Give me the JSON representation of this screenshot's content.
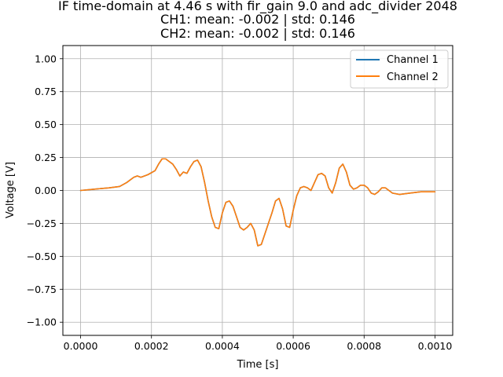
{
  "chart_data": {
    "type": "line",
    "title_lines": [
      "IF time-domain at 4.46 s with fir_gain 9.0 and adc_divider 2048",
      "CH1: mean: -0.002 | std: 0.146",
      "CH2: mean: -0.002 | std: 0.146"
    ],
    "xlabel": "Time [s]",
    "ylabel": "Voltage [V]",
    "xlim": [
      -5e-05,
      0.00105
    ],
    "ylim": [
      -1.1,
      1.1
    ],
    "xticks": [
      0,
      0.0002,
      0.0004,
      0.0006,
      0.0008,
      0.001
    ],
    "xtick_labels": [
      "0.0000",
      "0.0002",
      "0.0004",
      "0.0006",
      "0.0008",
      "0.0010"
    ],
    "yticks": [
      -1.0,
      -0.75,
      -0.5,
      -0.25,
      0.0,
      0.25,
      0.5,
      0.75,
      1.0
    ],
    "ytick_labels": [
      "−1.00",
      "−0.75",
      "−0.50",
      "−0.25",
      "0.00",
      "0.25",
      "0.50",
      "0.75",
      "1.00"
    ],
    "grid": true,
    "legend_position": "top-right",
    "series": [
      {
        "name": "Channel 1",
        "color": "#1f77b4",
        "x": [
          0,
          4e-05,
          8e-05,
          0.00011,
          0.00013,
          0.00015,
          0.00016,
          0.00017,
          0.00019,
          0.00021,
          0.00022,
          0.00023,
          0.00024,
          0.00025,
          0.00026,
          0.00027,
          0.00028,
          0.00029,
          0.0003,
          0.00031,
          0.00032,
          0.00033,
          0.00034,
          0.00035,
          0.00036,
          0.00037,
          0.00038,
          0.00039,
          0.0004,
          0.00041,
          0.00042,
          0.00043,
          0.00044,
          0.00045,
          0.00046,
          0.00047,
          0.00048,
          0.00049,
          0.0005,
          0.00051,
          0.00052,
          0.00053,
          0.00054,
          0.00055,
          0.00056,
          0.00057,
          0.00058,
          0.00059,
          0.0006,
          0.00061,
          0.00062,
          0.00063,
          0.00064,
          0.00065,
          0.00066,
          0.00067,
          0.00068,
          0.00069,
          0.0007,
          0.00071,
          0.00072,
          0.00073,
          0.00074,
          0.00075,
          0.00076,
          0.00077,
          0.00078,
          0.00079,
          0.0008,
          0.00081,
          0.00082,
          0.00083,
          0.00084,
          0.00085,
          0.00086,
          0.00087,
          0.00088,
          0.0009,
          0.00093,
          0.00096,
          0.00098,
          0.001
        ],
        "y": [
          0.0,
          0.01,
          0.02,
          0.03,
          0.06,
          0.1,
          0.11,
          0.1,
          0.12,
          0.15,
          0.2,
          0.24,
          0.24,
          0.22,
          0.2,
          0.16,
          0.11,
          0.14,
          0.13,
          0.18,
          0.22,
          0.23,
          0.18,
          0.06,
          -0.08,
          -0.2,
          -0.28,
          -0.29,
          -0.17,
          -0.09,
          -0.08,
          -0.12,
          -0.2,
          -0.28,
          -0.3,
          -0.28,
          -0.25,
          -0.3,
          -0.42,
          -0.41,
          -0.33,
          -0.25,
          -0.17,
          -0.08,
          -0.06,
          -0.14,
          -0.27,
          -0.28,
          -0.15,
          -0.04,
          0.02,
          0.03,
          0.02,
          0.0,
          0.06,
          0.12,
          0.13,
          0.11,
          0.02,
          -0.02,
          0.06,
          0.17,
          0.2,
          0.14,
          0.04,
          0.01,
          0.02,
          0.04,
          0.04,
          0.02,
          -0.02,
          -0.03,
          -0.01,
          0.02,
          0.02,
          0.0,
          -0.02,
          -0.03,
          -0.02,
          -0.01,
          -0.01,
          -0.01
        ]
      },
      {
        "name": "Channel 2",
        "color": "#ff7f0e",
        "x": [
          0,
          4e-05,
          8e-05,
          0.00011,
          0.00013,
          0.00015,
          0.00016,
          0.00017,
          0.00019,
          0.00021,
          0.00022,
          0.00023,
          0.00024,
          0.00025,
          0.00026,
          0.00027,
          0.00028,
          0.00029,
          0.0003,
          0.00031,
          0.00032,
          0.00033,
          0.00034,
          0.00035,
          0.00036,
          0.00037,
          0.00038,
          0.00039,
          0.0004,
          0.00041,
          0.00042,
          0.00043,
          0.00044,
          0.00045,
          0.00046,
          0.00047,
          0.00048,
          0.00049,
          0.0005,
          0.00051,
          0.00052,
          0.00053,
          0.00054,
          0.00055,
          0.00056,
          0.00057,
          0.00058,
          0.00059,
          0.0006,
          0.00061,
          0.00062,
          0.00063,
          0.00064,
          0.00065,
          0.00066,
          0.00067,
          0.00068,
          0.00069,
          0.0007,
          0.00071,
          0.00072,
          0.00073,
          0.00074,
          0.00075,
          0.00076,
          0.00077,
          0.00078,
          0.00079,
          0.0008,
          0.00081,
          0.00082,
          0.00083,
          0.00084,
          0.00085,
          0.00086,
          0.00087,
          0.00088,
          0.0009,
          0.00093,
          0.00096,
          0.00098,
          0.001
        ],
        "y": [
          0.0,
          0.01,
          0.02,
          0.03,
          0.06,
          0.1,
          0.11,
          0.1,
          0.12,
          0.15,
          0.2,
          0.24,
          0.24,
          0.22,
          0.2,
          0.16,
          0.11,
          0.14,
          0.13,
          0.18,
          0.22,
          0.23,
          0.18,
          0.06,
          -0.08,
          -0.2,
          -0.28,
          -0.29,
          -0.17,
          -0.09,
          -0.08,
          -0.12,
          -0.2,
          -0.28,
          -0.3,
          -0.28,
          -0.25,
          -0.3,
          -0.42,
          -0.41,
          -0.33,
          -0.25,
          -0.17,
          -0.08,
          -0.06,
          -0.14,
          -0.27,
          -0.28,
          -0.15,
          -0.04,
          0.02,
          0.03,
          0.02,
          0.0,
          0.06,
          0.12,
          0.13,
          0.11,
          0.02,
          -0.02,
          0.06,
          0.17,
          0.2,
          0.14,
          0.04,
          0.01,
          0.02,
          0.04,
          0.04,
          0.02,
          -0.02,
          -0.03,
          -0.01,
          0.02,
          0.02,
          0.0,
          -0.02,
          -0.03,
          -0.02,
          -0.01,
          -0.01,
          -0.01
        ]
      }
    ]
  }
}
